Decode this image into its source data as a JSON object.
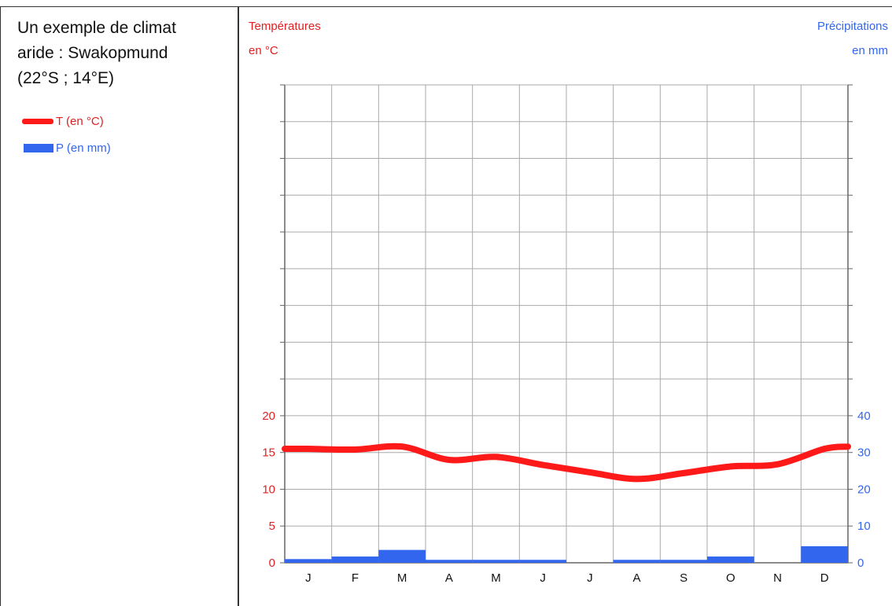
{
  "title": "Un exemple de climat aride : Swakopmund (22°S ; 14°E)",
  "title_lines": [
    "Un exemple de climat",
    "aride : Swakopmund",
    "(22°S ; 14°E)"
  ],
  "legend": {
    "temperature": "T (en °C)",
    "precipitation": "P (en mm)"
  },
  "axes": {
    "left_title_line1": "Températures",
    "left_title_line2": "en °C",
    "right_title_line1": "Précipitations",
    "right_title_line2": "en mm"
  },
  "colors": {
    "temperature": "#ff1a1a",
    "precipitation": "#3366ee",
    "left_axis": "#e02020",
    "right_axis": "#3366ee",
    "grid": "#aaaaaa"
  },
  "chart_data": {
    "type": "bar",
    "categories": [
      "J",
      "F",
      "M",
      "A",
      "M",
      "J",
      "J",
      "A",
      "S",
      "O",
      "N",
      "D"
    ],
    "series": [
      {
        "name": "T (en °C)",
        "type": "line",
        "axis": "left",
        "values": [
          15.5,
          15.4,
          15.8,
          14.0,
          14.4,
          13.3,
          12.3,
          11.4,
          12.2,
          13.1,
          13.4,
          15.5
        ]
      },
      {
        "name": "P (en mm)",
        "type": "bar",
        "axis": "right",
        "values": [
          1,
          1.7,
          3.5,
          0.8,
          0.8,
          0.8,
          0,
          0.8,
          0.8,
          1.7,
          0,
          4.5
        ]
      }
    ],
    "y_left": {
      "label": "Températures en °C",
      "ticks": [
        0,
        5,
        10,
        15,
        20
      ],
      "range": [
        0,
        65
      ]
    },
    "y_right": {
      "label": "Précipitations en mm",
      "ticks": [
        0,
        10,
        20,
        30,
        40
      ],
      "range": [
        0,
        130
      ]
    },
    "grid": true
  }
}
